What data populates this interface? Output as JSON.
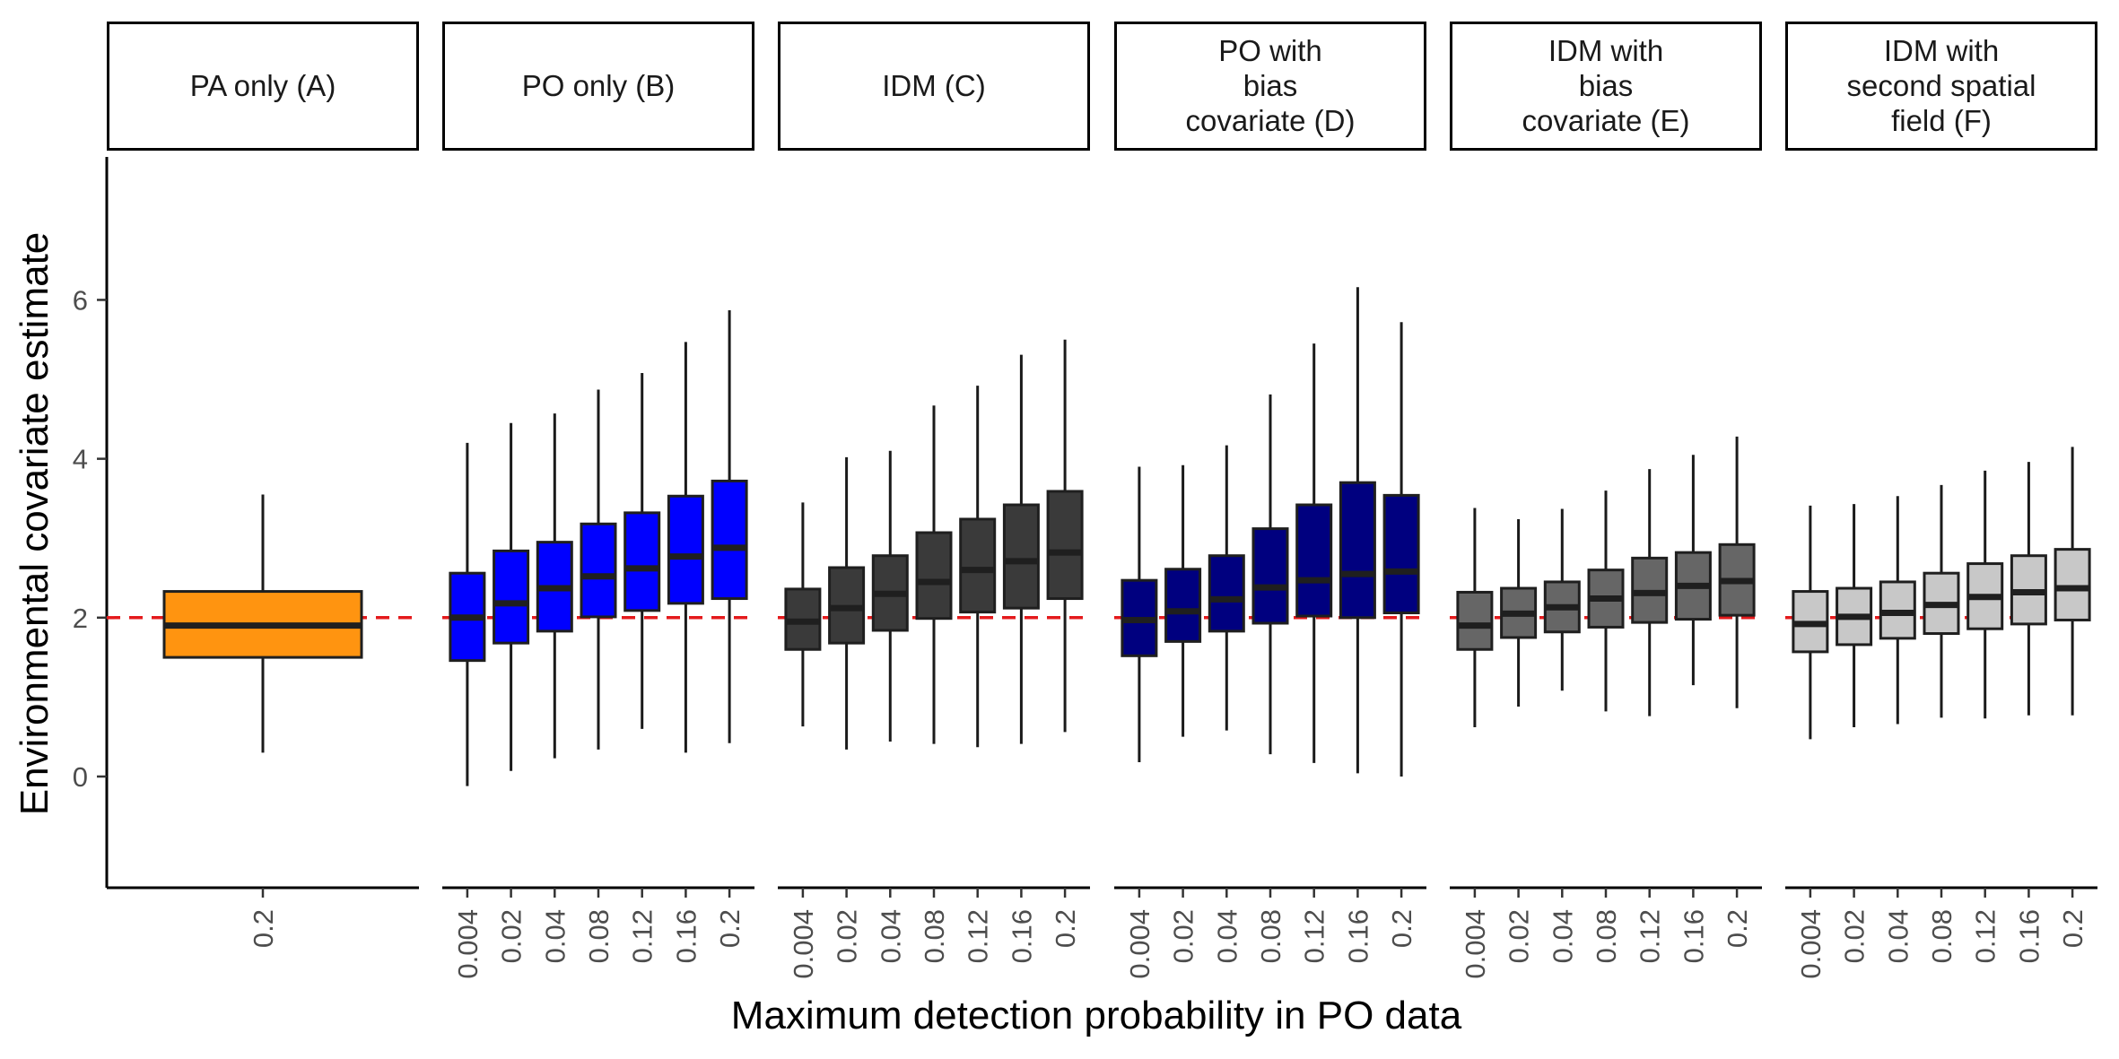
{
  "chart_data": {
    "type": "boxplot",
    "title": "",
    "xlabel": "Maximum detection probability in PO data",
    "ylabel": "Environmental covariate estimate",
    "ylim": [
      -1.4,
      7.8
    ],
    "yticks": [
      0,
      2,
      4,
      6
    ],
    "reference_line": {
      "y": 2,
      "color": "#e41a1c",
      "style": "dashed"
    },
    "grid": false,
    "legend": "none",
    "panels": [
      {
        "strip": [
          "PA only (A)"
        ],
        "fill": "#ff9410",
        "categories": [
          "0.2"
        ],
        "boxes": [
          {
            "lower": 0.3,
            "q1": 1.5,
            "median": 1.9,
            "q3": 2.33,
            "upper": 3.55
          }
        ]
      },
      {
        "strip": [
          "PO only (B)"
        ],
        "fill": "#0000ff",
        "categories": [
          "0.004",
          "0.02",
          "0.04",
          "0.08",
          "0.12",
          "0.16",
          "0.2"
        ],
        "boxes": [
          {
            "lower": -0.12,
            "q1": 1.46,
            "median": 2.0,
            "q3": 2.56,
            "upper": 4.2
          },
          {
            "lower": 0.07,
            "q1": 1.68,
            "median": 2.18,
            "q3": 2.84,
            "upper": 4.45
          },
          {
            "lower": 0.23,
            "q1": 1.83,
            "median": 2.37,
            "q3": 2.95,
            "upper": 4.57
          },
          {
            "lower": 0.34,
            "q1": 2.01,
            "median": 2.52,
            "q3": 3.18,
            "upper": 4.87
          },
          {
            "lower": 0.6,
            "q1": 2.09,
            "median": 2.62,
            "q3": 3.32,
            "upper": 5.08
          },
          {
            "lower": 0.3,
            "q1": 2.18,
            "median": 2.77,
            "q3": 3.53,
            "upper": 5.47
          },
          {
            "lower": 0.42,
            "q1": 2.24,
            "median": 2.88,
            "q3": 3.72,
            "upper": 5.87
          }
        ]
      },
      {
        "strip": [
          "IDM (C)"
        ],
        "fill": "#3a3a3a",
        "categories": [
          "0.004",
          "0.02",
          "0.04",
          "0.08",
          "0.12",
          "0.16",
          "0.2"
        ],
        "boxes": [
          {
            "lower": 0.63,
            "q1": 1.6,
            "median": 1.95,
            "q3": 2.36,
            "upper": 3.45
          },
          {
            "lower": 0.34,
            "q1": 1.68,
            "median": 2.12,
            "q3": 2.63,
            "upper": 4.02
          },
          {
            "lower": 0.44,
            "q1": 1.84,
            "median": 2.3,
            "q3": 2.78,
            "upper": 4.1
          },
          {
            "lower": 0.41,
            "q1": 1.99,
            "median": 2.45,
            "q3": 3.07,
            "upper": 4.67
          },
          {
            "lower": 0.37,
            "q1": 2.07,
            "median": 2.6,
            "q3": 3.24,
            "upper": 4.92
          },
          {
            "lower": 0.41,
            "q1": 2.12,
            "median": 2.71,
            "q3": 3.42,
            "upper": 5.31
          },
          {
            "lower": 0.56,
            "q1": 2.24,
            "median": 2.82,
            "q3": 3.59,
            "upper": 5.5
          }
        ]
      },
      {
        "strip": [
          "PO with",
          "bias",
          "covariate (D)"
        ],
        "fill": "#00007f",
        "categories": [
          "0.004",
          "0.02",
          "0.04",
          "0.08",
          "0.12",
          "0.16",
          "0.2"
        ],
        "boxes": [
          {
            "lower": 0.18,
            "q1": 1.52,
            "median": 1.97,
            "q3": 2.47,
            "upper": 3.9
          },
          {
            "lower": 0.5,
            "q1": 1.7,
            "median": 2.08,
            "q3": 2.61,
            "upper": 3.92
          },
          {
            "lower": 0.58,
            "q1": 1.83,
            "median": 2.23,
            "q3": 2.78,
            "upper": 4.17
          },
          {
            "lower": 0.28,
            "q1": 1.93,
            "median": 2.38,
            "q3": 3.12,
            "upper": 4.81
          },
          {
            "lower": 0.17,
            "q1": 2.02,
            "median": 2.47,
            "q3": 3.42,
            "upper": 5.45
          },
          {
            "lower": 0.04,
            "q1": 2.0,
            "median": 2.55,
            "q3": 3.7,
            "upper": 6.16
          },
          {
            "lower": 0.0,
            "q1": 2.06,
            "median": 2.58,
            "q3": 3.54,
            "upper": 5.72
          }
        ]
      },
      {
        "strip": [
          "IDM with",
          "bias",
          "covariate (E)"
        ],
        "fill": "#666666",
        "categories": [
          "0.004",
          "0.02",
          "0.04",
          "0.08",
          "0.12",
          "0.16",
          "0.2"
        ],
        "boxes": [
          {
            "lower": 0.62,
            "q1": 1.6,
            "median": 1.9,
            "q3": 2.32,
            "upper": 3.38
          },
          {
            "lower": 0.88,
            "q1": 1.75,
            "median": 2.05,
            "q3": 2.37,
            "upper": 3.24
          },
          {
            "lower": 1.08,
            "q1": 1.82,
            "median": 2.13,
            "q3": 2.45,
            "upper": 3.37
          },
          {
            "lower": 0.82,
            "q1": 1.88,
            "median": 2.24,
            "q3": 2.6,
            "upper": 3.6
          },
          {
            "lower": 0.76,
            "q1": 1.94,
            "median": 2.31,
            "q3": 2.75,
            "upper": 3.87
          },
          {
            "lower": 1.15,
            "q1": 1.98,
            "median": 2.4,
            "q3": 2.82,
            "upper": 4.05
          },
          {
            "lower": 0.86,
            "q1": 2.03,
            "median": 2.46,
            "q3": 2.92,
            "upper": 4.28
          }
        ]
      },
      {
        "strip": [
          "IDM with",
          "second spatial",
          "field (F)"
        ],
        "fill": "#c8c8c8",
        "categories": [
          "0.004",
          "0.02",
          "0.04",
          "0.08",
          "0.12",
          "0.16",
          "0.2"
        ],
        "boxes": [
          {
            "lower": 0.47,
            "q1": 1.57,
            "median": 1.92,
            "q3": 2.33,
            "upper": 3.41
          },
          {
            "lower": 0.62,
            "q1": 1.66,
            "median": 2.01,
            "q3": 2.37,
            "upper": 3.43
          },
          {
            "lower": 0.66,
            "q1": 1.74,
            "median": 2.06,
            "q3": 2.45,
            "upper": 3.53
          },
          {
            "lower": 0.74,
            "q1": 1.8,
            "median": 2.16,
            "q3": 2.56,
            "upper": 3.67
          },
          {
            "lower": 0.73,
            "q1": 1.86,
            "median": 2.26,
            "q3": 2.68,
            "upper": 3.85
          },
          {
            "lower": 0.77,
            "q1": 1.92,
            "median": 2.32,
            "q3": 2.78,
            "upper": 3.96
          },
          {
            "lower": 0.77,
            "q1": 1.97,
            "median": 2.37,
            "q3": 2.86,
            "upper": 4.15
          }
        ]
      }
    ]
  }
}
